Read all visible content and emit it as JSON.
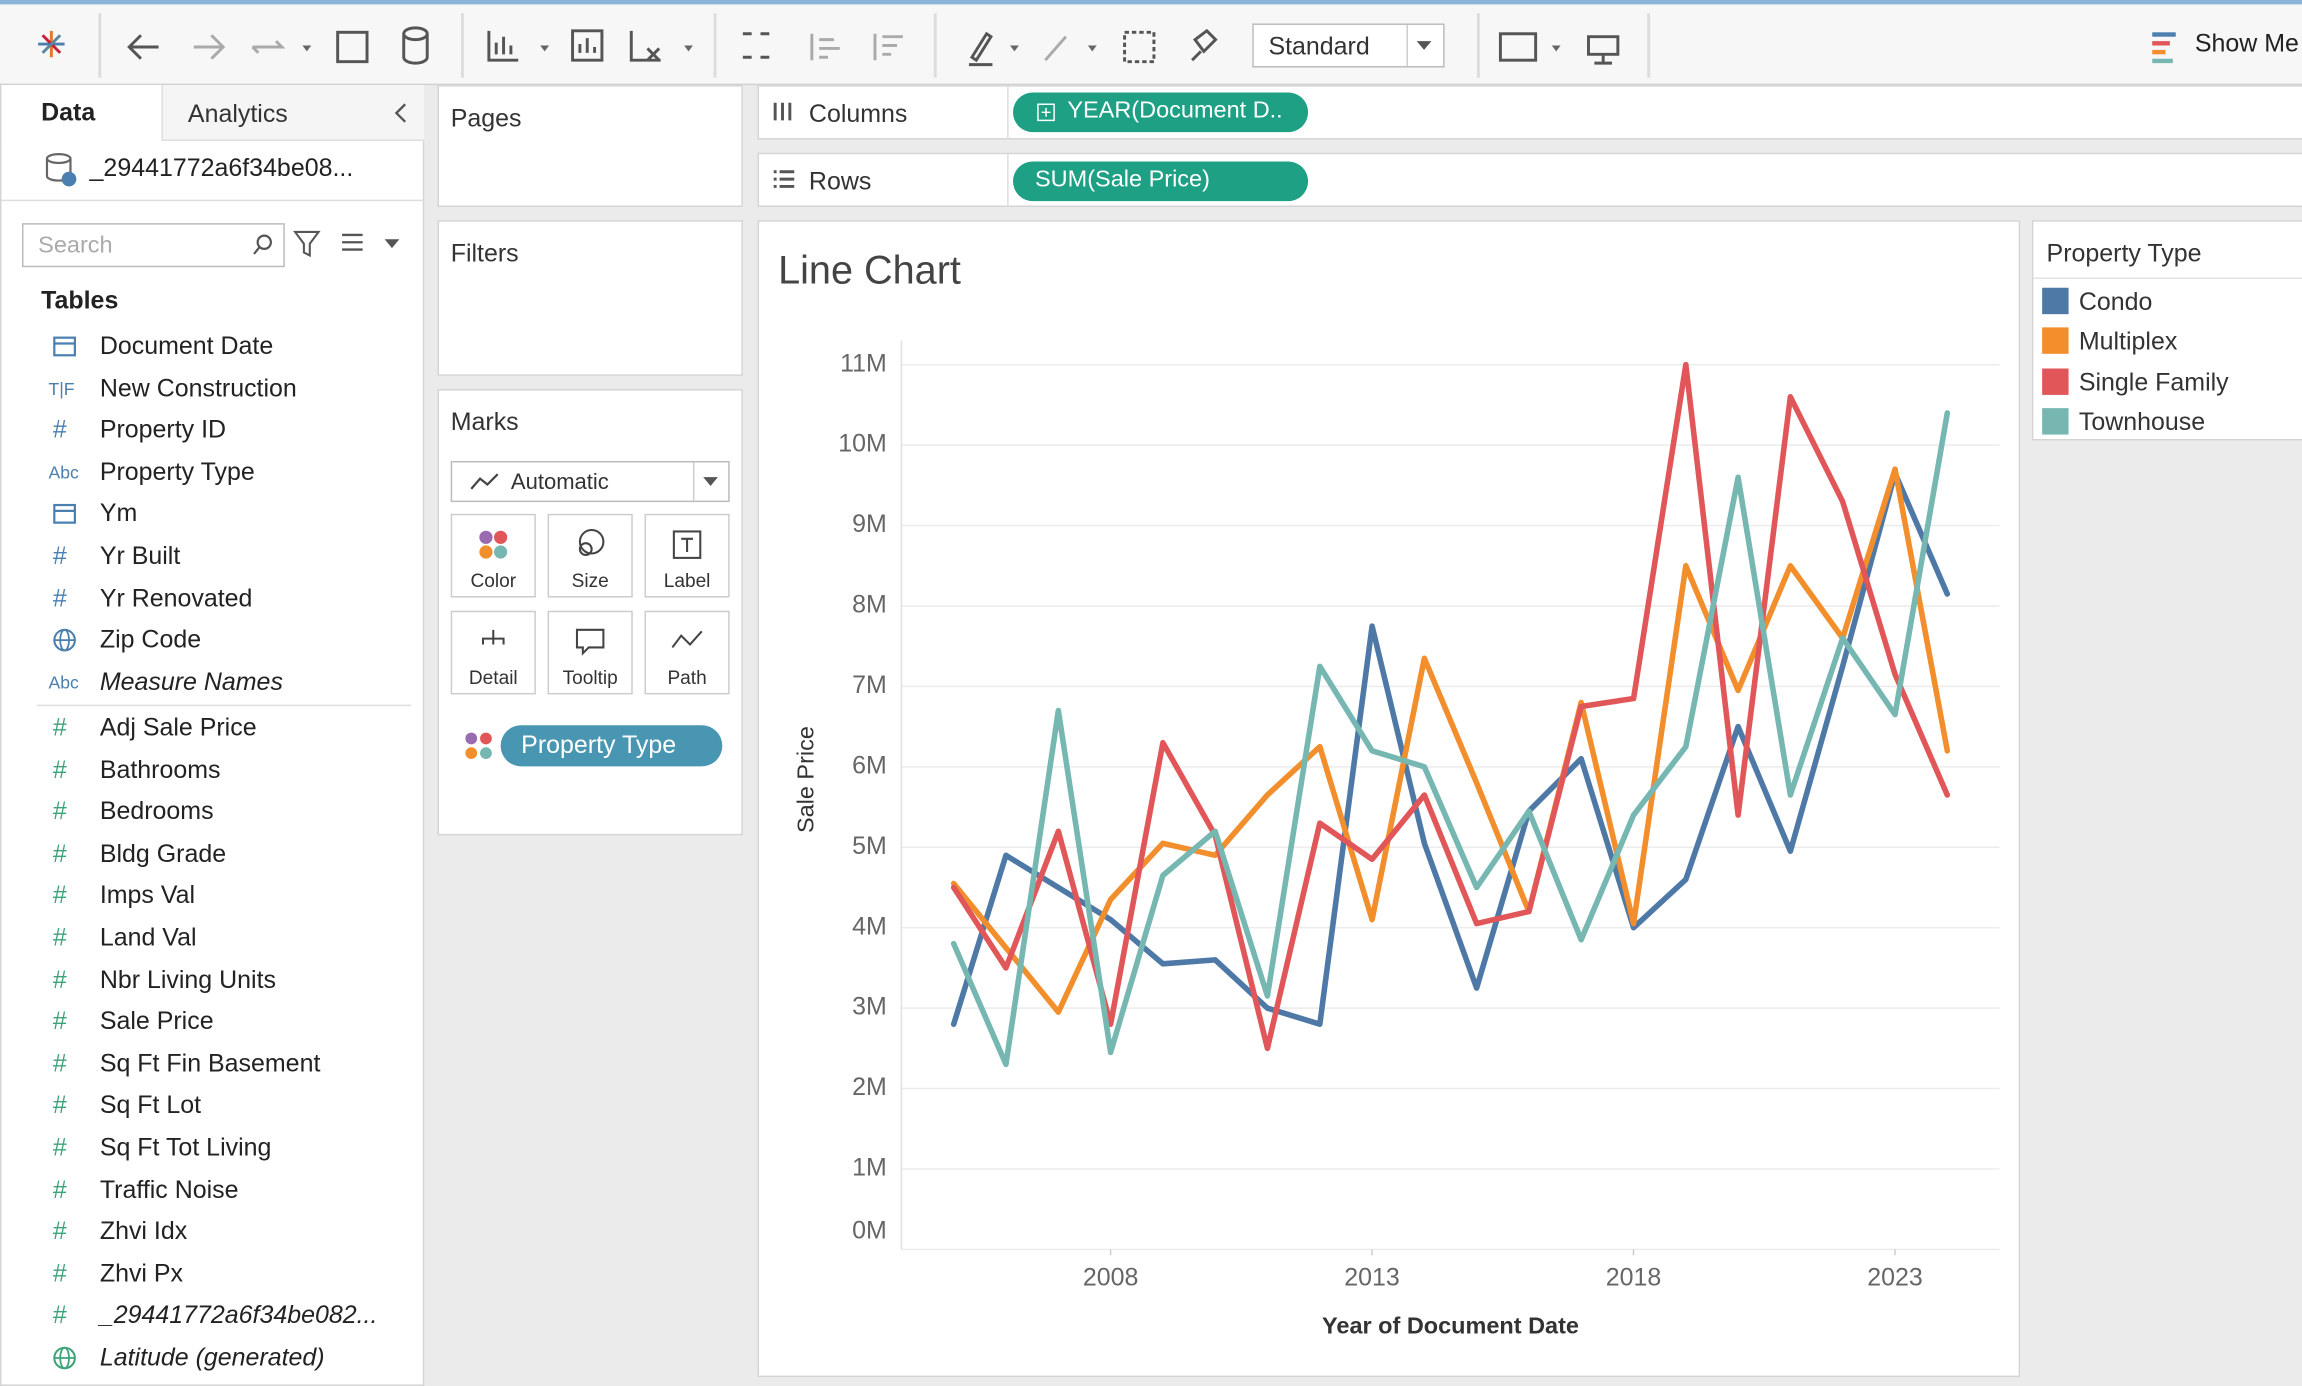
{
  "toolbar": {
    "view_size": "Standard",
    "show_me": "Show Me"
  },
  "data_pane": {
    "tabs": [
      "Data",
      "Analytics"
    ],
    "datasource": "_29441772a6f34be08...",
    "search_placeholder": "Search",
    "tables_heading": "Tables",
    "dimensions": [
      {
        "icon": "calendar",
        "name": "Document Date"
      },
      {
        "icon": "T|F",
        "name": "New Construction"
      },
      {
        "icon": "#",
        "name": "Property ID"
      },
      {
        "icon": "Abc",
        "name": "Property Type"
      },
      {
        "icon": "calendar",
        "name": "Ym"
      },
      {
        "icon": "#",
        "name": "Yr Built"
      },
      {
        "icon": "#",
        "name": "Yr Renovated"
      },
      {
        "icon": "globe",
        "name": "Zip Code"
      },
      {
        "icon": "Abc",
        "name": "Measure Names",
        "italic": true
      }
    ],
    "measures": [
      {
        "icon": "#",
        "name": "Adj Sale Price"
      },
      {
        "icon": "#",
        "name": "Bathrooms"
      },
      {
        "icon": "#",
        "name": "Bedrooms"
      },
      {
        "icon": "#",
        "name": "Bldg Grade"
      },
      {
        "icon": "#",
        "name": "Imps Val"
      },
      {
        "icon": "#",
        "name": "Land Val"
      },
      {
        "icon": "#",
        "name": "Nbr Living Units"
      },
      {
        "icon": "#",
        "name": "Sale Price"
      },
      {
        "icon": "#",
        "name": "Sq Ft Fin Basement"
      },
      {
        "icon": "#",
        "name": "Sq Ft Lot"
      },
      {
        "icon": "#",
        "name": "Sq Ft Tot Living"
      },
      {
        "icon": "#",
        "name": "Traffic Noise"
      },
      {
        "icon": "#",
        "name": "Zhvi Idx"
      },
      {
        "icon": "#",
        "name": "Zhvi Px"
      },
      {
        "icon": "#",
        "name": "_29441772a6f34be082...",
        "italic": true
      },
      {
        "icon": "globe",
        "name": "Latitude (generated)",
        "italic": true
      }
    ]
  },
  "shelves": {
    "pages": "Pages",
    "filters": "Filters",
    "columns": {
      "label": "Columns",
      "pill": "YEAR(Document D.."
    },
    "rows": {
      "label": "Rows",
      "pill": "SUM(Sale Price)"
    }
  },
  "marks": {
    "title": "Marks",
    "mark_type": "Automatic",
    "buttons": [
      "Color",
      "Size",
      "Label",
      "Detail",
      "Tooltip",
      "Path"
    ],
    "pill": "Property Type"
  },
  "legend": {
    "title": "Property Type"
  },
  "chart_data": {
    "type": "line",
    "title": "Line Chart",
    "x_label": "Year of Document Date",
    "y_label": "Sale Price",
    "x": [
      2005,
      2006,
      2007,
      2008,
      2009,
      2010,
      2011,
      2012,
      2013,
      2014,
      2015,
      2016,
      2017,
      2018,
      2019,
      2020,
      2021,
      2022,
      2023,
      2024
    ],
    "xlim": [
      2004,
      2025
    ],
    "xticks": [
      2008,
      2013,
      2018,
      2023
    ],
    "ylim": [
      0,
      11300000
    ],
    "yticks": [
      {
        "value": 0,
        "label": "0M"
      },
      {
        "value": 1000000,
        "label": "1M"
      },
      {
        "value": 2000000,
        "label": "2M"
      },
      {
        "value": 3000000,
        "label": "3M"
      },
      {
        "value": 4000000,
        "label": "4M"
      },
      {
        "value": 5000000,
        "label": "5M"
      },
      {
        "value": 6000000,
        "label": "6M"
      },
      {
        "value": 7000000,
        "label": "7M"
      },
      {
        "value": 8000000,
        "label": "8M"
      },
      {
        "value": 9000000,
        "label": "9M"
      },
      {
        "value": 10000000,
        "label": "10M"
      },
      {
        "value": 11000000,
        "label": "11M"
      }
    ],
    "grid": true,
    "series": [
      {
        "name": "Condo",
        "color": "#4e79a7",
        "values": [
          2800000,
          4900000,
          4500000,
          4100000,
          3550000,
          3600000,
          3000000,
          2800000,
          7750000,
          5050000,
          3250000,
          5450000,
          6100000,
          4000000,
          4600000,
          6500000,
          4950000,
          7250000,
          9650000,
          8150000
        ]
      },
      {
        "name": "Multiplex",
        "color": "#f28e2b",
        "values": [
          4550000,
          3750000,
          2950000,
          4350000,
          5050000,
          4900000,
          5650000,
          6250000,
          4100000,
          7350000,
          5800000,
          4200000,
          6800000,
          4050000,
          8500000,
          6950000,
          8500000,
          7600000,
          9700000,
          6200000
        ]
      },
      {
        "name": "Single Family",
        "color": "#e15759",
        "values": [
          4500000,
          3500000,
          5200000,
          2800000,
          6300000,
          5150000,
          2500000,
          5300000,
          4850000,
          5650000,
          4050000,
          4200000,
          6750000,
          6850000,
          11000000,
          5400000,
          10600000,
          9300000,
          7150000,
          5650000
        ]
      },
      {
        "name": "Townhouse",
        "color": "#76b7b2",
        "values": [
          3800000,
          2300000,
          6700000,
          2450000,
          4650000,
          5200000,
          3150000,
          7250000,
          6200000,
          6000000,
          4500000,
          5450000,
          3850000,
          5400000,
          6250000,
          9600000,
          5650000,
          7600000,
          6650000,
          10400000
        ]
      }
    ]
  }
}
